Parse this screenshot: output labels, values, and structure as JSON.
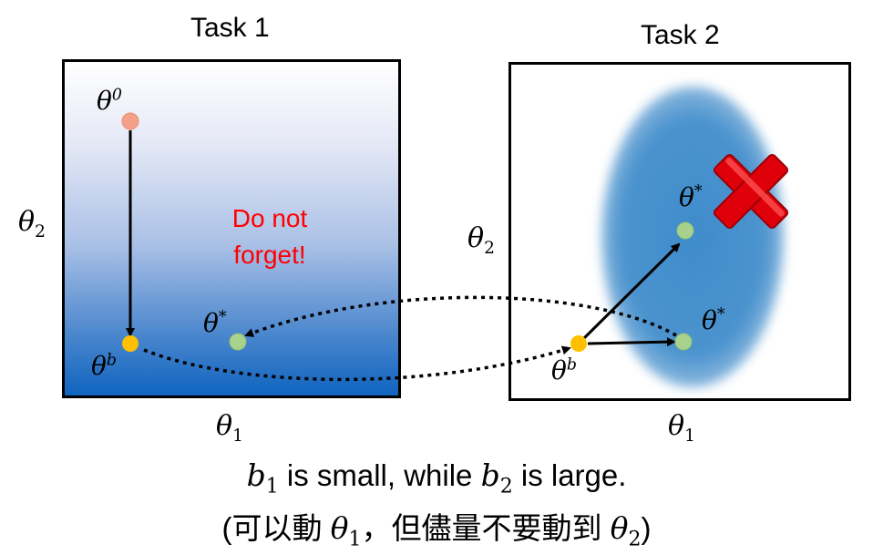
{
  "task1": {
    "title": "Task 1",
    "axis_x": {
      "sym": "θ",
      "sub": "1"
    },
    "axis_y": {
      "sym": "θ",
      "sub": "2"
    },
    "start_point": {
      "sym": "θ",
      "sup": "0"
    },
    "b_point": {
      "sym": "θ",
      "sup": "b"
    },
    "opt_point": {
      "sym": "θ",
      "sup": "*"
    },
    "note_line1": "Do not",
    "note_line2": "forget!"
  },
  "task2": {
    "title": "Task 2",
    "axis_x": {
      "sym": "θ",
      "sub": "1"
    },
    "axis_y": {
      "sym": "θ",
      "sub": "2"
    },
    "b_point": {
      "sym": "θ",
      "sup": "b"
    },
    "opt_point_top": {
      "sym": "θ",
      "sup": "*"
    },
    "opt_point_right": {
      "sym": "θ",
      "sup": "*"
    }
  },
  "caption": {
    "line1_b1": "b",
    "line1_b1_sub": "1",
    "line1_mid": " is small, while ",
    "line1_b2": "b",
    "line1_b2_sub": "2",
    "line1_end": " is large.",
    "line2_start": "(可以動 ",
    "line2_theta1": "θ",
    "line2_theta1_sub": "1",
    "line2_mid": "，但儘量不要動到 ",
    "line2_theta2": "θ",
    "line2_theta2_sub": "2",
    "line2_end": ")"
  },
  "colors": {
    "start_point": "#f4a08a",
    "b_point": "#ffc000",
    "opt_point": "#a9d18e",
    "note": "#ff0000",
    "cross": "#e0000a"
  }
}
